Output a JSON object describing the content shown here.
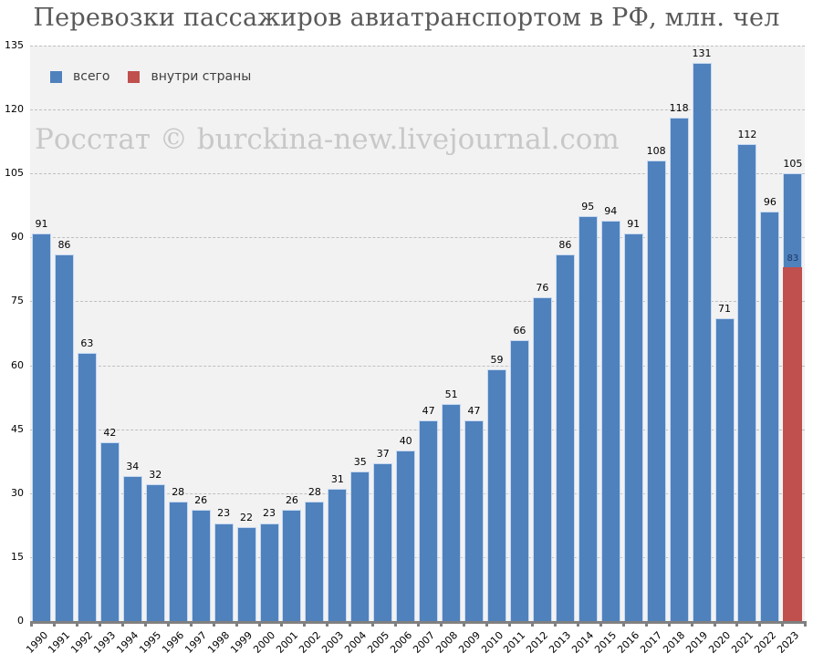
{
  "title": "Перевозки пассажиров авиатранспортом в РФ, млн. чел",
  "watermark": "Росстат © burckina-new.livejournal.com",
  "legend": [
    {
      "label": "всего",
      "color": "#4f81bd"
    },
    {
      "label": "внутри страны",
      "color": "#c0504d"
    }
  ],
  "colors": {
    "total": "#4f81bd",
    "domestic": "#c0504d",
    "plot_bg": "#f2f2f2",
    "grid": "#bfbfbf"
  },
  "chart_data": {
    "type": "bar",
    "title": "Перевозки пассажиров авиатранспортом в РФ, млн. чел",
    "xlabel": "",
    "ylabel": "",
    "ylim": [
      0,
      135
    ],
    "yticks": [
      0,
      15,
      30,
      45,
      60,
      75,
      90,
      105,
      120,
      135
    ],
    "grid": true,
    "legend_position": "top-left inside",
    "categories": [
      "1990",
      "1991",
      "1992",
      "1993",
      "1994",
      "1995",
      "1996",
      "1997",
      "1998",
      "1999",
      "2000",
      "2001",
      "2002",
      "2003",
      "2004",
      "2005",
      "2006",
      "2007",
      "2008",
      "2009",
      "2010",
      "2011",
      "2012",
      "2013",
      "2014",
      "2015",
      "2016",
      "2017",
      "2018",
      "2019",
      "2020",
      "2021",
      "2022",
      "2023"
    ],
    "series": [
      {
        "name": "всего",
        "values": [
          91,
          86,
          63,
          42,
          34,
          32,
          28,
          26,
          23,
          22,
          23,
          26,
          28,
          31,
          35,
          37,
          40,
          47,
          51,
          47,
          59,
          66,
          76,
          86,
          95,
          94,
          91,
          108,
          118,
          131,
          71,
          112,
          96,
          105
        ]
      },
      {
        "name": "внутри страны",
        "values": [
          null,
          null,
          null,
          null,
          null,
          null,
          null,
          null,
          null,
          null,
          null,
          null,
          null,
          null,
          null,
          null,
          null,
          null,
          null,
          null,
          null,
          null,
          null,
          null,
          null,
          null,
          null,
          null,
          null,
          null,
          null,
          null,
          null,
          83
        ]
      }
    ]
  }
}
